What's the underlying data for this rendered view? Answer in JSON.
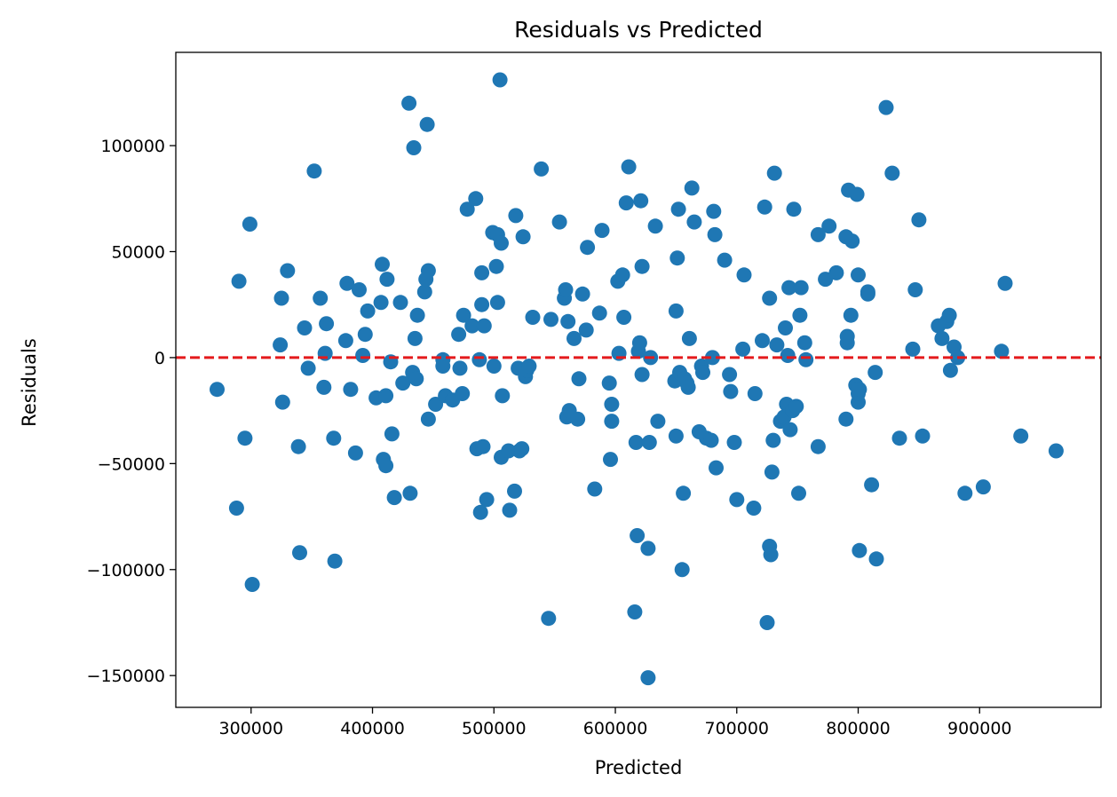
{
  "chart_data": {
    "type": "scatter",
    "title": "Residuals vs Predicted",
    "xlabel": "Predicted",
    "ylabel": "Residuals",
    "xlim": [
      238000,
      1000000
    ],
    "ylim": [
      -165000,
      144000
    ],
    "x_ticks": [
      300000,
      400000,
      500000,
      600000,
      700000,
      800000,
      900000
    ],
    "x_tick_labels": [
      "300000",
      "400000",
      "500000",
      "600000",
      "700000",
      "800000",
      "900000"
    ],
    "y_ticks": [
      -150000,
      -100000,
      -50000,
      0,
      50000,
      100000
    ],
    "y_tick_labels": [
      "−150000",
      "−100000",
      "−50000",
      "0",
      "50000",
      "100000"
    ],
    "grid": false,
    "legend": "none",
    "point_color": "#1f77b4",
    "reference_line": {
      "y": 0,
      "color": "#e41a1c",
      "style": "dashed"
    },
    "points": [
      [
        272000,
        -15000
      ],
      [
        288000,
        -71000
      ],
      [
        290000,
        36000
      ],
      [
        295000,
        -38000
      ],
      [
        299000,
        63000
      ],
      [
        301000,
        -107000
      ],
      [
        324000,
        6000
      ],
      [
        325000,
        28000
      ],
      [
        326000,
        -21000
      ],
      [
        330000,
        41000
      ],
      [
        339000,
        -42000
      ],
      [
        340000,
        -92000
      ],
      [
        344000,
        14000
      ],
      [
        347000,
        -5000
      ],
      [
        352000,
        88000
      ],
      [
        357000,
        28000
      ],
      [
        360000,
        -14000
      ],
      [
        361000,
        2000
      ],
      [
        362000,
        16000
      ],
      [
        368000,
        -38000
      ],
      [
        369000,
        -96000
      ],
      [
        378000,
        8000
      ],
      [
        379000,
        35000
      ],
      [
        382000,
        -15000
      ],
      [
        386000,
        -45000
      ],
      [
        389000,
        32000
      ],
      [
        392000,
        1000
      ],
      [
        394000,
        11000
      ],
      [
        396000,
        22000
      ],
      [
        403000,
        -19000
      ],
      [
        407000,
        26000
      ],
      [
        408000,
        44000
      ],
      [
        409000,
        -48000
      ],
      [
        411000,
        -18000
      ],
      [
        411000,
        -51000
      ],
      [
        412000,
        37000
      ],
      [
        415000,
        -2000
      ],
      [
        416000,
        -36000
      ],
      [
        418000,
        -66000
      ],
      [
        423000,
        26000
      ],
      [
        425000,
        -12000
      ],
      [
        430000,
        120000
      ],
      [
        431000,
        -64000
      ],
      [
        433000,
        -7000
      ],
      [
        434000,
        99000
      ],
      [
        435000,
        9000
      ],
      [
        436000,
        -10000
      ],
      [
        437000,
        20000
      ],
      [
        443000,
        31000
      ],
      [
        444000,
        37000
      ],
      [
        445000,
        110000
      ],
      [
        446000,
        41000
      ],
      [
        446000,
        -29000
      ],
      [
        452000,
        -22000
      ],
      [
        458000,
        -1000
      ],
      [
        458000,
        -4000
      ],
      [
        460000,
        -18000
      ],
      [
        466000,
        -20000
      ],
      [
        471000,
        11000
      ],
      [
        472000,
        -5000
      ],
      [
        474000,
        -17000
      ],
      [
        475000,
        20000
      ],
      [
        478000,
        70000
      ],
      [
        482000,
        15000
      ],
      [
        485000,
        75000
      ],
      [
        486000,
        -43000
      ],
      [
        488000,
        -1000
      ],
      [
        489000,
        -73000
      ],
      [
        490000,
        25000
      ],
      [
        490000,
        40000
      ],
      [
        491000,
        -42000
      ],
      [
        492000,
        15000
      ],
      [
        494000,
        -67000
      ],
      [
        499000,
        59000
      ],
      [
        500000,
        -4000
      ],
      [
        502000,
        43000
      ],
      [
        503000,
        26000
      ],
      [
        503000,
        58000
      ],
      [
        505000,
        131000
      ],
      [
        506000,
        54000
      ],
      [
        506000,
        -47000
      ],
      [
        507000,
        -18000
      ],
      [
        512000,
        -44000
      ],
      [
        513000,
        -72000
      ],
      [
        517000,
        -63000
      ],
      [
        518000,
        67000
      ],
      [
        520000,
        -5000
      ],
      [
        521000,
        -44000
      ],
      [
        523000,
        -43000
      ],
      [
        524000,
        57000
      ],
      [
        526000,
        -9000
      ],
      [
        527000,
        -6000
      ],
      [
        529000,
        -4000
      ],
      [
        532000,
        19000
      ],
      [
        539000,
        89000
      ],
      [
        545000,
        -123000
      ],
      [
        547000,
        18000
      ],
      [
        554000,
        64000
      ],
      [
        558000,
        28000
      ],
      [
        559000,
        32000
      ],
      [
        560000,
        -28000
      ],
      [
        561000,
        17000
      ],
      [
        562000,
        -25000
      ],
      [
        566000,
        9000
      ],
      [
        569000,
        -29000
      ],
      [
        570000,
        -10000
      ],
      [
        573000,
        30000
      ],
      [
        576000,
        13000
      ],
      [
        577000,
        52000
      ],
      [
        583000,
        -62000
      ],
      [
        587000,
        21000
      ],
      [
        589000,
        60000
      ],
      [
        595000,
        -12000
      ],
      [
        596000,
        -48000
      ],
      [
        597000,
        -22000
      ],
      [
        597000,
        -30000
      ],
      [
        602000,
        36000
      ],
      [
        603000,
        2000
      ],
      [
        606000,
        39000
      ],
      [
        607000,
        19000
      ],
      [
        609000,
        73000
      ],
      [
        611000,
        90000
      ],
      [
        616000,
        -120000
      ],
      [
        617000,
        -40000
      ],
      [
        618000,
        -84000
      ],
      [
        619000,
        3000
      ],
      [
        620000,
        7000
      ],
      [
        621000,
        74000
      ],
      [
        622000,
        -8000
      ],
      [
        622000,
        43000
      ],
      [
        627000,
        -151000
      ],
      [
        627000,
        -90000
      ],
      [
        628000,
        -40000
      ],
      [
        629000,
        0
      ],
      [
        633000,
        62000
      ],
      [
        635000,
        -30000
      ],
      [
        649000,
        -11000
      ],
      [
        650000,
        22000
      ],
      [
        650000,
        -37000
      ],
      [
        651000,
        47000
      ],
      [
        652000,
        70000
      ],
      [
        653000,
        -7000
      ],
      [
        655000,
        -100000
      ],
      [
        656000,
        -64000
      ],
      [
        657000,
        -10000
      ],
      [
        659000,
        -12000
      ],
      [
        660000,
        -14000
      ],
      [
        661000,
        9000
      ],
      [
        663000,
        80000
      ],
      [
        665000,
        64000
      ],
      [
        669000,
        -35000
      ],
      [
        671000,
        -4000
      ],
      [
        672000,
        -7000
      ],
      [
        675000,
        -38000
      ],
      [
        679000,
        -39000
      ],
      [
        680000,
        0
      ],
      [
        681000,
        69000
      ],
      [
        682000,
        58000
      ],
      [
        683000,
        -52000
      ],
      [
        690000,
        46000
      ],
      [
        694000,
        -8000
      ],
      [
        695000,
        -16000
      ],
      [
        698000,
        -40000
      ],
      [
        700000,
        -67000
      ],
      [
        705000,
        4000
      ],
      [
        706000,
        39000
      ],
      [
        714000,
        -71000
      ],
      [
        715000,
        -17000
      ],
      [
        721000,
        8000
      ],
      [
        723000,
        71000
      ],
      [
        725000,
        -125000
      ],
      [
        727000,
        28000
      ],
      [
        727000,
        -89000
      ],
      [
        728000,
        -93000
      ],
      [
        729000,
        -54000
      ],
      [
        730000,
        -39000
      ],
      [
        731000,
        87000
      ],
      [
        733000,
        6000
      ],
      [
        736000,
        -30000
      ],
      [
        739000,
        -28000
      ],
      [
        740000,
        14000
      ],
      [
        741000,
        -22000
      ],
      [
        742000,
        1000
      ],
      [
        743000,
        33000
      ],
      [
        744000,
        -34000
      ],
      [
        746000,
        -25000
      ],
      [
        747000,
        70000
      ],
      [
        749000,
        -23000
      ],
      [
        751000,
        -64000
      ],
      [
        752000,
        20000
      ],
      [
        753000,
        33000
      ],
      [
        756000,
        7000
      ],
      [
        757000,
        -1000
      ],
      [
        767000,
        58000
      ],
      [
        767000,
        -42000
      ],
      [
        773000,
        37000
      ],
      [
        776000,
        62000
      ],
      [
        782000,
        40000
      ],
      [
        790000,
        -29000
      ],
      [
        790000,
        57000
      ],
      [
        791000,
        7000
      ],
      [
        791000,
        10000
      ],
      [
        792000,
        79000
      ],
      [
        794000,
        20000
      ],
      [
        795000,
        55000
      ],
      [
        798000,
        -13000
      ],
      [
        799000,
        77000
      ],
      [
        800000,
        -21000
      ],
      [
        800000,
        -17000
      ],
      [
        800000,
        39000
      ],
      [
        801000,
        -91000
      ],
      [
        801000,
        -15000
      ],
      [
        808000,
        30000
      ],
      [
        808000,
        31000
      ],
      [
        811000,
        -60000
      ],
      [
        814000,
        -7000
      ],
      [
        815000,
        -95000
      ],
      [
        823000,
        118000
      ],
      [
        828000,
        87000
      ],
      [
        834000,
        -38000
      ],
      [
        845000,
        4000
      ],
      [
        847000,
        32000
      ],
      [
        850000,
        65000
      ],
      [
        853000,
        -37000
      ],
      [
        866000,
        15000
      ],
      [
        869000,
        9000
      ],
      [
        873000,
        17000
      ],
      [
        875000,
        20000
      ],
      [
        876000,
        -6000
      ],
      [
        879000,
        5000
      ],
      [
        882000,
        0
      ],
      [
        888000,
        -64000
      ],
      [
        903000,
        -61000
      ],
      [
        918000,
        3000
      ],
      [
        921000,
        35000
      ],
      [
        934000,
        -37000
      ],
      [
        963000,
        -44000
      ]
    ]
  }
}
